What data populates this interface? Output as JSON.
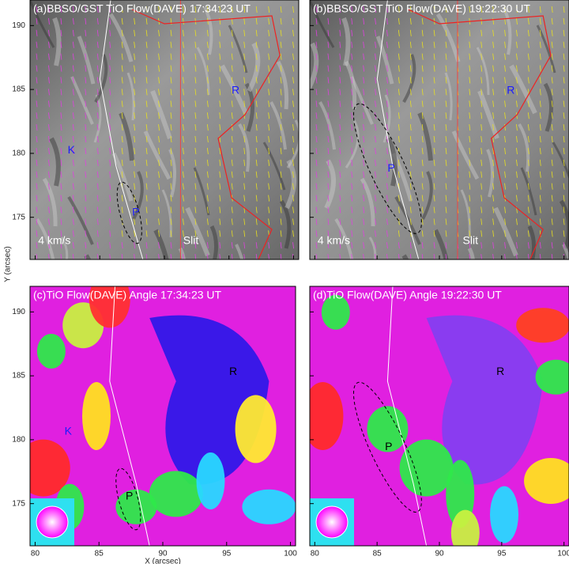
{
  "chart_data": [
    {
      "type": "image",
      "title": "(a)BBSO/GST TiO Flow(DAVE) 17:34:23 UT",
      "annotations": [
        "R",
        "K",
        "P",
        "4 km/s",
        "Slit"
      ],
      "xlim": [
        79.6,
        100.4
      ],
      "ylim": [
        171.7,
        192
      ],
      "xticks": [
        80,
        85,
        90,
        95,
        100
      ],
      "yticks": [
        175,
        180,
        185,
        190
      ]
    },
    {
      "type": "image",
      "title": "(b)BBSO/GST TiO Flow(DAVE) 19:22:30 UT",
      "annotations": [
        "R",
        "P",
        "4 km/s",
        "Slit"
      ],
      "xlim": [
        79.6,
        100.4
      ],
      "ylim": [
        171.7,
        192
      ],
      "xticks": [
        80,
        85,
        90,
        95,
        100
      ],
      "yticks": [
        175,
        180,
        185,
        190
      ]
    },
    {
      "type": "image",
      "title": "(c)TiO Flow(DAVE) Angle 17:34:23 UT",
      "annotations": [
        "R",
        "K",
        "P"
      ],
      "xlabel": "X (arcsec)",
      "ylabel": "Y (arcsec)",
      "xlim": [
        79.6,
        100.4
      ],
      "ylim": [
        171.7,
        192
      ],
      "xticks": [
        80,
        85,
        90,
        95,
        100
      ],
      "yticks": [
        175,
        180,
        185,
        190
      ]
    },
    {
      "type": "image",
      "title": "(d)TiO Flow(DAVE) Angle 19:22:30 UT",
      "annotations": [
        "R",
        "P"
      ],
      "xlim": [
        79.6,
        100.4
      ],
      "ylim": [
        171.7,
        192
      ],
      "xticks": [
        80,
        85,
        90,
        95,
        100
      ],
      "yticks": [
        175,
        180,
        185,
        190
      ]
    }
  ]
}
